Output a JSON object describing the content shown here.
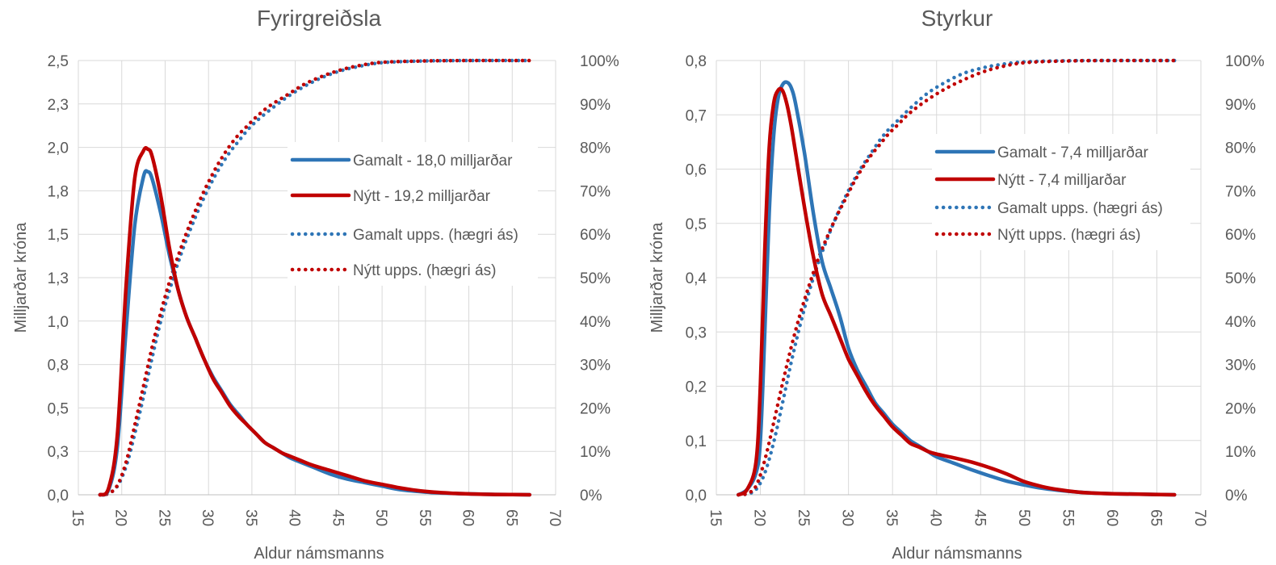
{
  "chart_data": [
    {
      "type": "line",
      "title": "Fyrirgreiðsla",
      "xlabel": "Aldur námsmanns",
      "ylabel": "Milljarðar króna",
      "xlim": [
        15,
        70
      ],
      "xticks": [
        "15",
        "20",
        "25",
        "30",
        "35",
        "40",
        "45",
        "50",
        "55",
        "60",
        "65",
        "70"
      ],
      "ylim": [
        0,
        2.5
      ],
      "yticks": [
        "0,0",
        "0,3",
        "0,5",
        "0,8",
        "1,0",
        "1,3",
        "1,5",
        "1,8",
        "2,0",
        "2,3",
        "2,5"
      ],
      "y2lim": [
        0,
        100
      ],
      "y2ticks": [
        "0%",
        "10%",
        "20%",
        "30%",
        "40%",
        "50%",
        "60%",
        "70%",
        "80%",
        "90%",
        "100%"
      ],
      "grid": true,
      "legend_position": "right",
      "series": [
        {
          "name": "Gamalt - 18,0 milljarðar",
          "color": "#2e75b6",
          "style": "solid",
          "axis": "left",
          "x": [
            17.5,
            18.5,
            19.5,
            20.5,
            21.5,
            22.5,
            23,
            23.5,
            24.5,
            25.5,
            26.5,
            27.5,
            28.5,
            29.5,
            30.5,
            31.5,
            32.5,
            33.5,
            34.5,
            35.5,
            36.5,
            37.5,
            38.5,
            39.5,
            40.5,
            42,
            44,
            46,
            48,
            50,
            52,
            54,
            56,
            58,
            60,
            63,
            67
          ],
          "y": [
            0.0,
            0.03,
            0.28,
            0.95,
            1.55,
            1.83,
            1.86,
            1.82,
            1.62,
            1.38,
            1.18,
            1.02,
            0.9,
            0.78,
            0.68,
            0.6,
            0.52,
            0.46,
            0.4,
            0.35,
            0.3,
            0.27,
            0.24,
            0.21,
            0.19,
            0.16,
            0.12,
            0.09,
            0.07,
            0.05,
            0.03,
            0.02,
            0.012,
            0.008,
            0.005,
            0.002,
            0.0
          ]
        },
        {
          "name": "Nýtt - 19,2 milljarðar",
          "color": "#c00000",
          "style": "solid",
          "axis": "left",
          "x": [
            17.5,
            18.5,
            19.5,
            20.5,
            21.5,
            22.5,
            23,
            23.5,
            24.5,
            25.5,
            26.5,
            27.5,
            28.5,
            29.5,
            30.5,
            31.5,
            32.5,
            33.5,
            34.5,
            35.5,
            36.5,
            37.5,
            38.5,
            39.5,
            40.5,
            42,
            44,
            46,
            48,
            50,
            52,
            54,
            56,
            58,
            60,
            63,
            67
          ],
          "y": [
            0.0,
            0.04,
            0.35,
            1.2,
            1.82,
            1.98,
            1.99,
            1.95,
            1.72,
            1.42,
            1.18,
            1.02,
            0.9,
            0.78,
            0.67,
            0.59,
            0.51,
            0.45,
            0.4,
            0.35,
            0.3,
            0.27,
            0.24,
            0.22,
            0.2,
            0.17,
            0.14,
            0.11,
            0.08,
            0.06,
            0.04,
            0.025,
            0.015,
            0.009,
            0.005,
            0.002,
            0.0
          ]
        },
        {
          "name": "Gamalt upps. (hægri ás)",
          "color": "#2e75b6",
          "style": "dotted",
          "axis": "right",
          "x": [
            17.5,
            18.5,
            19.5,
            20.5,
            21.5,
            22.5,
            23.5,
            24.5,
            25.5,
            26.5,
            27.5,
            28.5,
            29.5,
            30.5,
            31.5,
            32.5,
            33.5,
            34.5,
            35.5,
            37,
            39,
            41,
            43,
            45,
            47,
            50,
            55,
            60,
            67
          ],
          "y": [
            0,
            0.3,
            2,
            6.5,
            14,
            22.5,
            31.5,
            40,
            47,
            53.5,
            59,
            64,
            68.5,
            72.5,
            76,
            79,
            81.5,
            84,
            86,
            88.5,
            91.5,
            94,
            96,
            97.5,
            98.5,
            99.5,
            99.9,
            100,
            100
          ]
        },
        {
          "name": "Nýtt upps. (hægri ás)",
          "color": "#c00000",
          "style": "dotted",
          "axis": "right",
          "x": [
            17.5,
            18.5,
            19.5,
            20.5,
            21.5,
            22.5,
            23.5,
            24.5,
            25.5,
            26.5,
            27.5,
            28.5,
            29.5,
            30.5,
            31.5,
            32.5,
            33.5,
            34.5,
            35.5,
            37,
            39,
            41,
            43,
            45,
            47,
            50,
            55,
            60,
            67
          ],
          "y": [
            0,
            0.3,
            2.2,
            7.5,
            16,
            25,
            34,
            42,
            49,
            55,
            60.5,
            65.5,
            70,
            74,
            77.5,
            80.5,
            83,
            85,
            87,
            89.5,
            92,
            94.5,
            96.3,
            97.7,
            98.7,
            99.6,
            99.9,
            100,
            100
          ]
        }
      ]
    },
    {
      "type": "line",
      "title": "Styrkur",
      "xlabel": "Aldur námsmanns",
      "ylabel": "Milljarðar króna",
      "xlim": [
        15,
        70
      ],
      "xticks": [
        "15",
        "20",
        "25",
        "30",
        "35",
        "40",
        "45",
        "50",
        "55",
        "60",
        "65",
        "70"
      ],
      "ylim": [
        0,
        0.8
      ],
      "yticks": [
        "0,0",
        "0,1",
        "0,2",
        "0,3",
        "0,4",
        "0,5",
        "0,6",
        "0,7",
        "0,8"
      ],
      "y2lim": [
        0,
        100
      ],
      "y2ticks": [
        "0%",
        "10%",
        "20%",
        "30%",
        "40%",
        "50%",
        "60%",
        "70%",
        "80%",
        "90%",
        "100%"
      ],
      "grid": true,
      "legend_position": "right",
      "series": [
        {
          "name": "Gamalt - 7,4 milljarðar",
          "color": "#2e75b6",
          "style": "solid",
          "axis": "left",
          "x": [
            17.5,
            18.5,
            19.5,
            20,
            20.5,
            21,
            21.5,
            22,
            22.5,
            23,
            23.5,
            24,
            25,
            26,
            27,
            28,
            29,
            30,
            31,
            32,
            33,
            34,
            35,
            36,
            37,
            38,
            39,
            40,
            42,
            44,
            46,
            48,
            50,
            52,
            54,
            56,
            58,
            60,
            63,
            67
          ],
          "y": [
            0.0,
            0.01,
            0.04,
            0.1,
            0.3,
            0.52,
            0.66,
            0.73,
            0.755,
            0.76,
            0.75,
            0.72,
            0.63,
            0.52,
            0.43,
            0.38,
            0.33,
            0.27,
            0.23,
            0.2,
            0.17,
            0.15,
            0.13,
            0.115,
            0.1,
            0.09,
            0.08,
            0.07,
            0.058,
            0.046,
            0.035,
            0.025,
            0.018,
            0.012,
            0.008,
            0.005,
            0.003,
            0.002,
            0.001,
            0.0
          ]
        },
        {
          "name": "Nýtt - 7,4 milljarðar",
          "color": "#c00000",
          "style": "solid",
          "axis": "left",
          "x": [
            17.5,
            18.5,
            19.5,
            20,
            20.5,
            21,
            21.5,
            22,
            22.5,
            23,
            23.5,
            24,
            25,
            26,
            27,
            28,
            29,
            30,
            31,
            32,
            33,
            34,
            35,
            36,
            37,
            38,
            39,
            40,
            42,
            44,
            46,
            48,
            50,
            52,
            54,
            56,
            58,
            60,
            63,
            67
          ],
          "y": [
            0.0,
            0.01,
            0.06,
            0.2,
            0.45,
            0.64,
            0.72,
            0.745,
            0.745,
            0.72,
            0.68,
            0.63,
            0.53,
            0.44,
            0.37,
            0.33,
            0.29,
            0.25,
            0.22,
            0.19,
            0.165,
            0.145,
            0.125,
            0.11,
            0.095,
            0.088,
            0.08,
            0.075,
            0.068,
            0.06,
            0.05,
            0.038,
            0.024,
            0.015,
            0.009,
            0.005,
            0.003,
            0.002,
            0.001,
            0.0
          ]
        },
        {
          "name": "Gamalt upps. (hægri ás)",
          "color": "#2e75b6",
          "style": "dotted",
          "axis": "right",
          "x": [
            17.5,
            18.5,
            19.5,
            20.5,
            21.5,
            22.5,
            23.5,
            24.5,
            25.5,
            26.5,
            27.5,
            28.5,
            29.5,
            30.5,
            31.5,
            32.5,
            33.5,
            34.5,
            35.5,
            37,
            39,
            41,
            43,
            45,
            47,
            50,
            55,
            60,
            67
          ],
          "y": [
            0,
            0.2,
            1.2,
            5,
            12,
            21,
            30.5,
            39,
            46.5,
            53,
            58.5,
            63.5,
            68,
            72,
            75.5,
            78.5,
            81.5,
            84,
            86,
            89,
            92.5,
            95,
            97,
            98.2,
            99,
            99.7,
            99.95,
            100,
            100
          ]
        },
        {
          "name": "Nýtt upps. (hægri ás)",
          "color": "#c00000",
          "style": "dotted",
          "axis": "right",
          "x": [
            17.5,
            18.5,
            19.5,
            20.5,
            21.5,
            22.5,
            23.5,
            24.5,
            25.5,
            26.5,
            27.5,
            28.5,
            29.5,
            30.5,
            31.5,
            32.5,
            33.5,
            34.5,
            35.5,
            37,
            39,
            41,
            43,
            45,
            47,
            50,
            55,
            60,
            67
          ],
          "y": [
            0,
            0.3,
            2,
            8,
            16.5,
            25.5,
            34,
            41.5,
            48,
            54,
            59,
            63.5,
            67.5,
            71.5,
            75,
            78,
            80.5,
            83,
            85,
            88,
            91,
            93.5,
            95.5,
            97.2,
            98.4,
            99.5,
            99.9,
            100,
            100
          ]
        }
      ]
    }
  ]
}
